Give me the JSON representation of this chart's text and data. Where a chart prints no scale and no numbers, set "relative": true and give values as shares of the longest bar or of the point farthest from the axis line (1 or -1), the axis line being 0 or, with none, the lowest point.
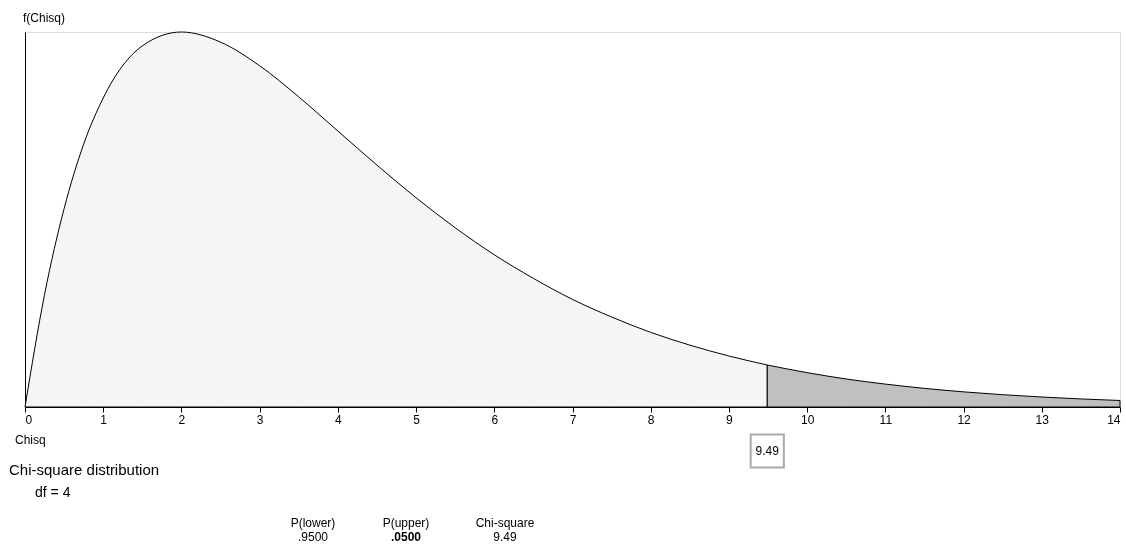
{
  "chart_data": {
    "type": "area",
    "title": "Chi-square distribution",
    "subtitle": "df = 4",
    "xlabel": "Chisq",
    "ylabel": "f(Chisq)",
    "relative": true,
    "xlim": [
      0,
      14
    ],
    "xticks": [
      0,
      1,
      2,
      3,
      4,
      5,
      6,
      7,
      8,
      9,
      10,
      11,
      12,
      13,
      14
    ],
    "grid": false,
    "series": [
      {
        "color": "#f5f5f5",
        "x": [
          0,
          0.25,
          0.5,
          0.75,
          1,
          1.5,
          2,
          2.5,
          3,
          3.5,
          4,
          4.5,
          5,
          5.5,
          6,
          6.5,
          7,
          7.5,
          8,
          8.5,
          9,
          9.49
        ],
        "values": [
          0,
          0.3,
          0.529,
          0.701,
          0.824,
          0.963,
          1,
          0.973,
          0.91,
          0.827,
          0.736,
          0.645,
          0.558,
          0.478,
          0.406,
          0.343,
          0.287,
          0.24,
          0.199,
          0.165,
          0.136,
          0.112
        ]
      },
      {
        "color": "#c0c0c0",
        "x": [
          9.49,
          10,
          10.5,
          11,
          11.5,
          12,
          12.5,
          13,
          13.5,
          14
        ],
        "values": [
          0.112,
          0.0916,
          0.0747,
          0.0611,
          0.0497,
          0.0404,
          0.0328,
          0.0266,
          0.0215,
          0.0174
        ]
      }
    ],
    "annotations": [
      "9.49",
      "P(lower)",
      "P(upper)",
      "Chi-square",
      ".9500",
      ".0500",
      "9.49"
    ]
  }
}
